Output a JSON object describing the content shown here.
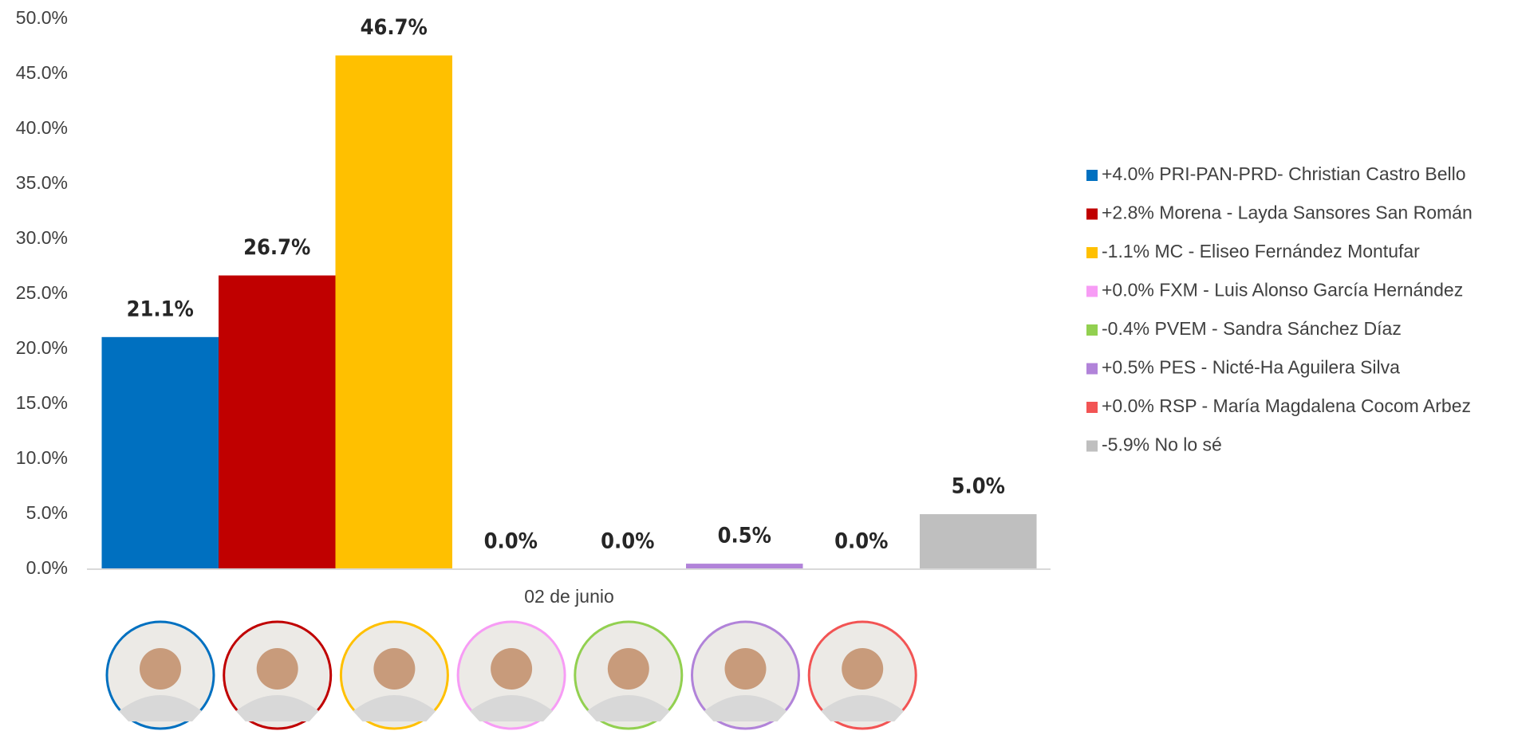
{
  "chart_data": {
    "type": "bar",
    "categories": [
      "02 de junio"
    ],
    "series": [
      {
        "name": "+4.0% PRI-PAN-PRD- Christian Castro Bello",
        "color": "#0070c0",
        "values": [
          21.1
        ],
        "value_labels": [
          "21.1%"
        ]
      },
      {
        "name": "+2.8% Morena - Layda Sansores San Román",
        "color": "#c00000",
        "values": [
          26.7
        ],
        "value_labels": [
          "26.7%"
        ]
      },
      {
        "name": "-1.1% MC - Eliseo Fernández Montufar",
        "color": "#ffc000",
        "values": [
          46.7
        ],
        "value_labels": [
          "46.7%"
        ]
      },
      {
        "name": "+0.0% FXM - Luis Alonso García Hernández",
        "color": "#f79cf5",
        "values": [
          0.0
        ],
        "value_labels": [
          "0.0%"
        ]
      },
      {
        "name": "-0.4% PVEM - Sandra Sánchez Díaz",
        "color": "#92d050",
        "values": [
          0.0
        ],
        "value_labels": [
          "0.0%"
        ]
      },
      {
        "name": "+0.5% PES - Nicté-Ha Aguilera Silva",
        "color": "#b183d9",
        "values": [
          0.5
        ],
        "value_labels": [
          "0.5%"
        ]
      },
      {
        "name": "+0.0% RSP - María Magdalena Cocom Arbez",
        "color": "#f25454",
        "values": [
          0.0
        ],
        "value_labels": [
          "0.0%"
        ]
      },
      {
        "name": "-5.9% No lo sé",
        "color": "#bfbfbf",
        "values": [
          5.0
        ],
        "value_labels": [
          "5.0%"
        ]
      }
    ],
    "ylim": [
      0,
      50
    ],
    "yticks": [
      {
        "value": 0,
        "label": "0.0%"
      },
      {
        "value": 5,
        "label": "5.0%"
      },
      {
        "value": 10,
        "label": "10.0%"
      },
      {
        "value": 15,
        "label": "15.0%"
      },
      {
        "value": 20,
        "label": "20.0%"
      },
      {
        "value": 25,
        "label": "25.0%"
      },
      {
        "value": 30,
        "label": "30.0%"
      },
      {
        "value": 35,
        "label": "35.0%"
      },
      {
        "value": 40,
        "label": "40.0%"
      },
      {
        "value": 45,
        "label": "45.0%"
      },
      {
        "value": 50,
        "label": "50.0%"
      }
    ],
    "grid": false,
    "legend": "right"
  }
}
